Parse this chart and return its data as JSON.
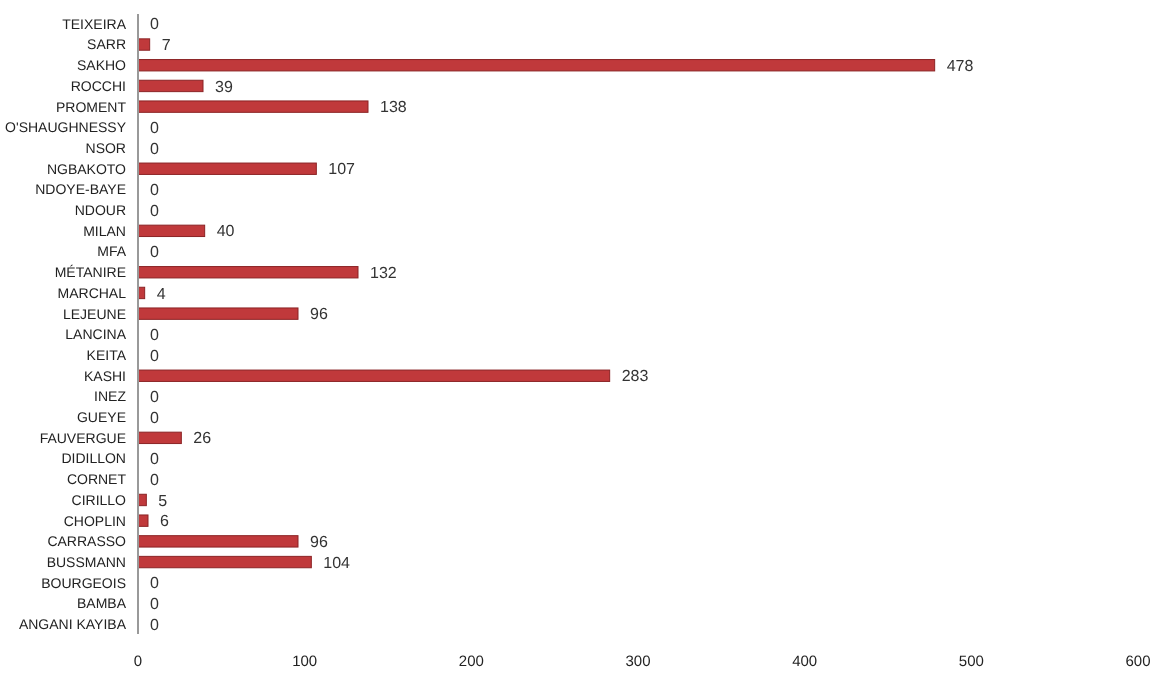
{
  "chart_data": {
    "type": "bar",
    "orientation": "horizontal",
    "categories": [
      "TEIXEIRA",
      "SARR",
      "SAKHO",
      "ROCCHI",
      "PROMENT",
      "O'SHAUGHNESSY",
      "NSOR",
      "NGBAKOTO",
      "NDOYE-BAYE",
      "NDOUR",
      "MILAN",
      "MFA",
      "MÉTANIRE",
      "MARCHAL",
      "LEJEUNE",
      "LANCINA",
      "KEITA",
      "KASHI",
      "INEZ",
      "GUEYE",
      "FAUVERGUE",
      "DIDILLON",
      "CORNET",
      "CIRILLO",
      "CHOPLIN",
      "CARRASSO",
      "BUSSMANN",
      "BOURGEOIS",
      "BAMBA",
      "ANGANI KAYIBA"
    ],
    "values": [
      0,
      7,
      478,
      39,
      138,
      0,
      0,
      107,
      0,
      0,
      40,
      0,
      132,
      4,
      96,
      0,
      0,
      283,
      0,
      0,
      26,
      0,
      0,
      5,
      6,
      96,
      104,
      0,
      0,
      0
    ],
    "color": "#c0393b",
    "xlim": [
      0,
      600
    ],
    "xticks": [
      0,
      100,
      200,
      300,
      400,
      500,
      600
    ],
    "data_labels": true
  }
}
